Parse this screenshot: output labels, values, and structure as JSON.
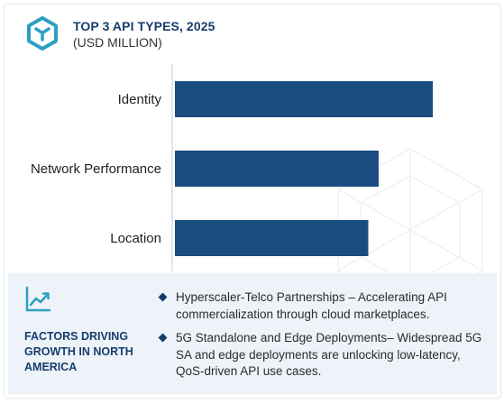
{
  "header": {
    "title": "TOP 3 API TYPES, 2025",
    "subtitle": "(USD MILLION)"
  },
  "colors": {
    "brand": "#153d6c",
    "bar": "#1a4c7f",
    "accent": "#2c9fc4",
    "panel": "#eef3f9"
  },
  "icons": {
    "logo": "cube-logo-icon",
    "trend": "trend-chart-icon"
  },
  "chart_data": {
    "type": "bar",
    "orientation": "horizontal",
    "categories": [
      "Identity",
      "Network Performance",
      "Location"
    ],
    "values": [
      100,
      79,
      75
    ],
    "title": "TOP 3 API TYPES, 2025",
    "subtitle": "(USD MILLION)",
    "xlabel": "",
    "ylabel": "",
    "xlim": [
      0,
      100
    ],
    "grid": false,
    "legend": "none"
  },
  "bottom": {
    "factors_label": "FACTORS DRIVING GROWTH IN NORTH AMERICA",
    "bullets": [
      "Hyperscaler-Telco Partnerships – Accelerating API commercialization through cloud marketplaces.",
      "5G Standalone and Edge Deployments– Widespread 5G SA and edge deployments are unlocking low-latency, QoS-driven API use cases."
    ]
  }
}
